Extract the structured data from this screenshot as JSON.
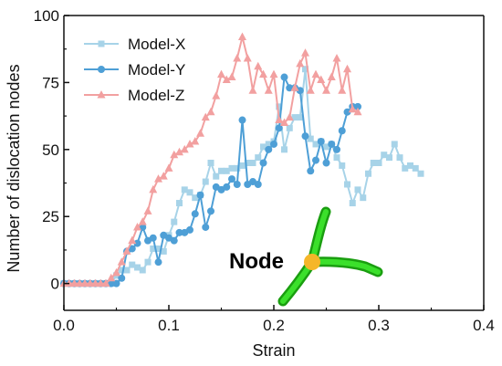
{
  "chart_data": {
    "type": "line",
    "xlabel": "Strain",
    "ylabel": "Number of dislocation nodes",
    "xlim": [
      0.0,
      0.4
    ],
    "ylim": [
      -10,
      100
    ],
    "x_ticks": [
      "0.0",
      "0.1",
      "0.2",
      "0.3",
      "0.4"
    ],
    "y_ticks": [
      "0",
      "25",
      "50",
      "75",
      "100"
    ],
    "legend_position": "top-left",
    "grid": false,
    "series": [
      {
        "name": "Model-X",
        "color": "#a7d3e8",
        "marker": "square",
        "points": [
          [
            0.0,
            0
          ],
          [
            0.005,
            0
          ],
          [
            0.01,
            0
          ],
          [
            0.015,
            0
          ],
          [
            0.02,
            0
          ],
          [
            0.025,
            0
          ],
          [
            0.03,
            0
          ],
          [
            0.035,
            0
          ],
          [
            0.04,
            0
          ],
          [
            0.045,
            0
          ],
          [
            0.05,
            3
          ],
          [
            0.055,
            5
          ],
          [
            0.06,
            5
          ],
          [
            0.065,
            7
          ],
          [
            0.07,
            6
          ],
          [
            0.075,
            5
          ],
          [
            0.08,
            8
          ],
          [
            0.085,
            13
          ],
          [
            0.09,
            13
          ],
          [
            0.095,
            12
          ],
          [
            0.1,
            18
          ],
          [
            0.105,
            23
          ],
          [
            0.11,
            30
          ],
          [
            0.115,
            35
          ],
          [
            0.12,
            34
          ],
          [
            0.125,
            32
          ],
          [
            0.13,
            33
          ],
          [
            0.135,
            38
          ],
          [
            0.14,
            45
          ],
          [
            0.145,
            40
          ],
          [
            0.15,
            42
          ],
          [
            0.155,
            42
          ],
          [
            0.16,
            43
          ],
          [
            0.165,
            43
          ],
          [
            0.17,
            44
          ],
          [
            0.175,
            45
          ],
          [
            0.18,
            45
          ],
          [
            0.185,
            47
          ],
          [
            0.19,
            51
          ],
          [
            0.195,
            52
          ],
          [
            0.2,
            53
          ],
          [
            0.205,
            66
          ],
          [
            0.21,
            50
          ],
          [
            0.215,
            58
          ],
          [
            0.22,
            62
          ],
          [
            0.225,
            62
          ],
          [
            0.23,
            80
          ],
          [
            0.235,
            54
          ],
          [
            0.24,
            52
          ],
          [
            0.245,
            53
          ],
          [
            0.25,
            51
          ],
          [
            0.255,
            52
          ],
          [
            0.26,
            47
          ],
          [
            0.265,
            44
          ],
          [
            0.27,
            37
          ],
          [
            0.275,
            30
          ],
          [
            0.28,
            35
          ],
          [
            0.285,
            32
          ],
          [
            0.29,
            41
          ],
          [
            0.295,
            45
          ],
          [
            0.3,
            45
          ],
          [
            0.305,
            48
          ],
          [
            0.31,
            47
          ],
          [
            0.315,
            52
          ],
          [
            0.32,
            47
          ],
          [
            0.325,
            43
          ],
          [
            0.33,
            44
          ],
          [
            0.335,
            43
          ],
          [
            0.34,
            41
          ]
        ]
      },
      {
        "name": "Model-Y",
        "color": "#4e9fd6",
        "marker": "circle",
        "points": [
          [
            0.0,
            0
          ],
          [
            0.005,
            0
          ],
          [
            0.01,
            0
          ],
          [
            0.015,
            0
          ],
          [
            0.02,
            0
          ],
          [
            0.025,
            0
          ],
          [
            0.03,
            0
          ],
          [
            0.035,
            0
          ],
          [
            0.04,
            0
          ],
          [
            0.045,
            0
          ],
          [
            0.05,
            0
          ],
          [
            0.055,
            2
          ],
          [
            0.06,
            12
          ],
          [
            0.065,
            13
          ],
          [
            0.07,
            15
          ],
          [
            0.075,
            21
          ],
          [
            0.08,
            16
          ],
          [
            0.085,
            17
          ],
          [
            0.09,
            8
          ],
          [
            0.095,
            18
          ],
          [
            0.1,
            17
          ],
          [
            0.105,
            16
          ],
          [
            0.11,
            19
          ],
          [
            0.115,
            19
          ],
          [
            0.12,
            20
          ],
          [
            0.125,
            26
          ],
          [
            0.13,
            33
          ],
          [
            0.135,
            21
          ],
          [
            0.14,
            27
          ],
          [
            0.145,
            36
          ],
          [
            0.15,
            35
          ],
          [
            0.155,
            36
          ],
          [
            0.16,
            39
          ],
          [
            0.165,
            37
          ],
          [
            0.17,
            61
          ],
          [
            0.175,
            37
          ],
          [
            0.18,
            38
          ],
          [
            0.185,
            37
          ],
          [
            0.19,
            45
          ],
          [
            0.195,
            50
          ],
          [
            0.2,
            52
          ],
          [
            0.205,
            58
          ],
          [
            0.21,
            77
          ],
          [
            0.215,
            73
          ],
          [
            0.22,
            73
          ],
          [
            0.225,
            72
          ],
          [
            0.23,
            55
          ],
          [
            0.235,
            42
          ],
          [
            0.24,
            46
          ],
          [
            0.245,
            53
          ],
          [
            0.25,
            45
          ],
          [
            0.255,
            52
          ],
          [
            0.26,
            50
          ],
          [
            0.265,
            57
          ],
          [
            0.27,
            64
          ],
          [
            0.275,
            66
          ],
          [
            0.28,
            66
          ]
        ]
      },
      {
        "name": "Model-Z",
        "color": "#f2a0a0",
        "marker": "triangle",
        "points": [
          [
            0.0,
            0
          ],
          [
            0.005,
            0
          ],
          [
            0.01,
            0
          ],
          [
            0.015,
            0
          ],
          [
            0.02,
            0
          ],
          [
            0.025,
            0
          ],
          [
            0.03,
            0
          ],
          [
            0.035,
            0
          ],
          [
            0.04,
            0
          ],
          [
            0.045,
            2
          ],
          [
            0.05,
            4
          ],
          [
            0.055,
            8
          ],
          [
            0.06,
            12
          ],
          [
            0.065,
            16
          ],
          [
            0.07,
            21
          ],
          [
            0.075,
            23
          ],
          [
            0.08,
            27
          ],
          [
            0.085,
            35
          ],
          [
            0.09,
            39
          ],
          [
            0.095,
            40
          ],
          [
            0.1,
            43
          ],
          [
            0.105,
            48
          ],
          [
            0.11,
            49
          ],
          [
            0.115,
            50
          ],
          [
            0.12,
            52
          ],
          [
            0.125,
            53
          ],
          [
            0.13,
            56
          ],
          [
            0.135,
            62
          ],
          [
            0.14,
            64
          ],
          [
            0.145,
            70
          ],
          [
            0.15,
            78
          ],
          [
            0.155,
            76
          ],
          [
            0.16,
            77
          ],
          [
            0.165,
            84
          ],
          [
            0.17,
            92
          ],
          [
            0.175,
            84
          ],
          [
            0.18,
            72
          ],
          [
            0.185,
            81
          ],
          [
            0.19,
            78
          ],
          [
            0.195,
            72
          ],
          [
            0.2,
            78
          ],
          [
            0.205,
            61
          ],
          [
            0.21,
            60
          ],
          [
            0.215,
            62
          ],
          [
            0.22,
            73
          ],
          [
            0.225,
            82
          ],
          [
            0.23,
            86
          ],
          [
            0.235,
            72
          ],
          [
            0.24,
            78
          ],
          [
            0.245,
            76
          ],
          [
            0.25,
            72
          ],
          [
            0.255,
            77
          ],
          [
            0.26,
            84
          ],
          [
            0.265,
            72
          ],
          [
            0.27,
            80
          ],
          [
            0.275,
            65
          ],
          [
            0.28,
            64
          ]
        ]
      }
    ],
    "annotation": "Node"
  }
}
